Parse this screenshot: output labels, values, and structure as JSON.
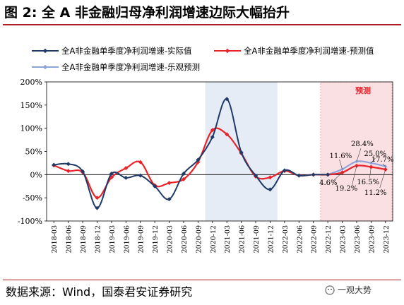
{
  "title": "图 2:  全 A 非金融归母净利润增速边际大幅抬升",
  "source": "数据来源：Wind，国泰君安证券研究",
  "watermark": "一观大势",
  "chart_data": {
    "type": "line",
    "x": [
      "2018-03",
      "2018-06",
      "2018-09",
      "2018-12",
      "2019-03",
      "2019-06",
      "2019-09",
      "2019-12",
      "2020-03",
      "2020-06",
      "2020-09",
      "2020-12",
      "2021-03",
      "2021-06",
      "2021-09",
      "2021-12",
      "2022-03",
      "2022-06",
      "2022-09",
      "2022-12",
      "2023-03",
      "2023-06",
      "2023-09",
      "2023-12"
    ],
    "ylim": [
      -100,
      200
    ],
    "yticks": [
      "-100%",
      "-50%",
      "0%",
      "50%",
      "100%",
      "150%",
      "200%"
    ],
    "ytick_values": [
      -100,
      -50,
      0,
      50,
      100,
      150,
      200
    ],
    "series": [
      {
        "name": "全A非金融单季度净利润增速-实际值",
        "color": "#1f3a68",
        "values": [
          21,
          23,
          7,
          -72,
          2,
          -7,
          -2,
          -25,
          -53,
          2,
          32,
          81,
          163,
          48,
          -2,
          -32,
          9,
          -2,
          0,
          0,
          null,
          null,
          null,
          null
        ]
      },
      {
        "name": "全A非金融单季度净利润增速-预测值",
        "color": "#e8232a",
        "values": [
          20,
          8,
          5,
          -50,
          -6,
          14,
          27,
          -23,
          -18,
          -10,
          27,
          96,
          87,
          46,
          -4,
          -6,
          8,
          -2,
          0,
          0,
          4.6,
          19.2,
          16.5,
          11.2
        ]
      },
      {
        "name": "全A非金融单季度净利润增速-乐观预测",
        "color": "#8ea4d8",
        "values": [
          null,
          null,
          null,
          null,
          null,
          null,
          null,
          null,
          null,
          null,
          null,
          null,
          null,
          null,
          null,
          null,
          null,
          null,
          null,
          0,
          11.6,
          28.4,
          25.0,
          17.7
        ]
      }
    ],
    "shaded_region_label": "预测",
    "annotations": [
      "28.4%",
      "11.6%",
      "25.0%",
      "17.7%",
      "4.6%",
      "19.2%",
      "16.5%",
      "11.2%"
    ],
    "colors": {
      "axis": "#000000",
      "shade_blue": "#e6ecf5",
      "shade_pink": "#fbe0e3",
      "shade_pink_border": "#f2a0a8"
    }
  }
}
